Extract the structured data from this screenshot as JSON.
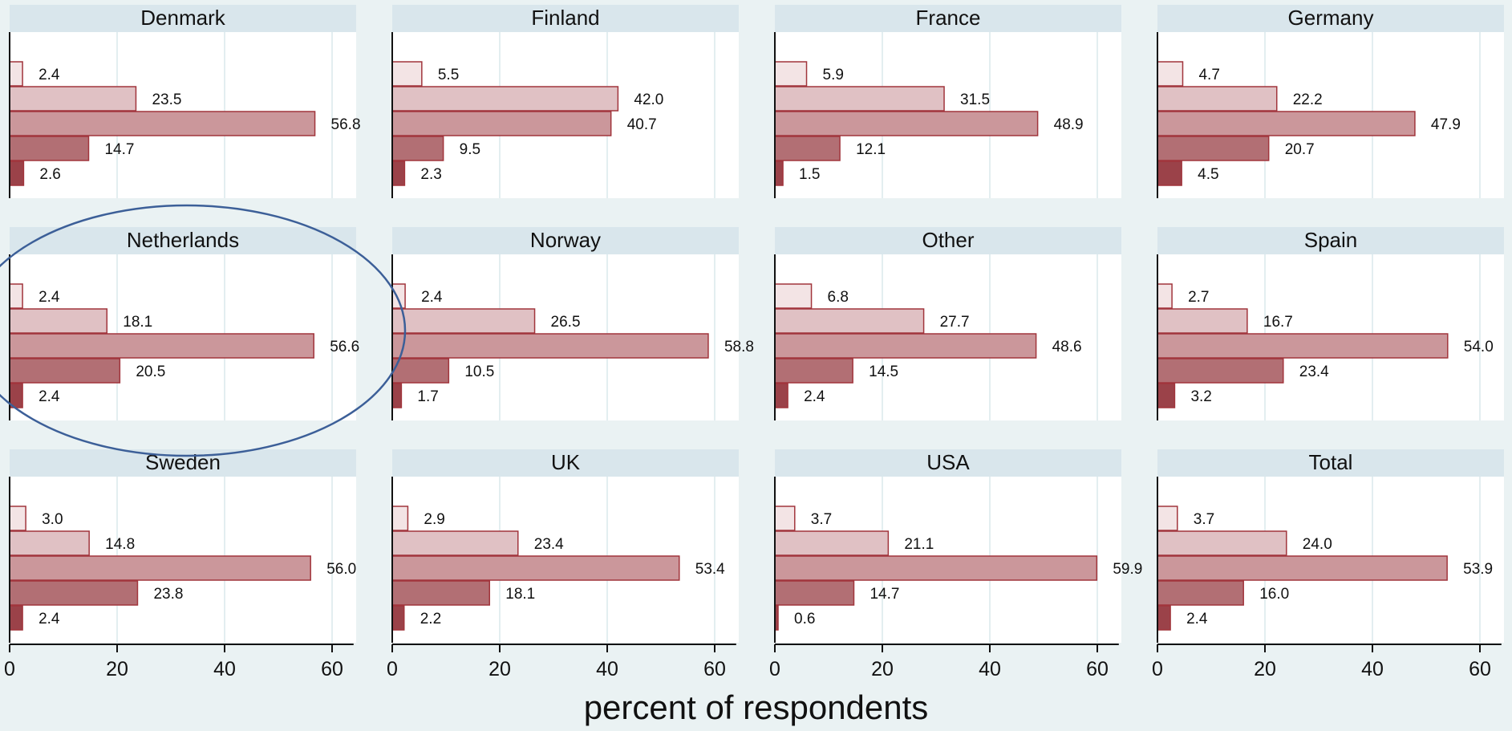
{
  "chart_data": {
    "type": "bar",
    "orientation": "horizontal",
    "xlabel": "percent of respondents",
    "xlim": [
      0,
      64
    ],
    "xticks": [
      0,
      20,
      40,
      60
    ],
    "grid": true,
    "series_colors": [
      "#f3e4e5",
      "#e0c1c4",
      "#cb979b",
      "#b26f74",
      "#9b4249"
    ],
    "edge_color": "#a1353c",
    "annotation": {
      "shape": "ellipse",
      "color": "#3c5f98",
      "target_panel": "Netherlands"
    },
    "panels": [
      {
        "title": "Denmark",
        "values": [
          2.4,
          23.5,
          56.8,
          14.7,
          2.6
        ]
      },
      {
        "title": "Finland",
        "values": [
          5.5,
          42.0,
          40.7,
          9.5,
          2.3
        ]
      },
      {
        "title": "France",
        "values": [
          5.9,
          31.5,
          48.9,
          12.1,
          1.5
        ]
      },
      {
        "title": "Germany",
        "values": [
          4.7,
          22.2,
          47.9,
          20.7,
          4.5
        ]
      },
      {
        "title": "Netherlands",
        "values": [
          2.4,
          18.1,
          56.6,
          20.5,
          2.4
        ]
      },
      {
        "title": "Norway",
        "values": [
          2.4,
          26.5,
          58.8,
          10.5,
          1.7
        ]
      },
      {
        "title": "Other",
        "values": [
          6.8,
          27.7,
          48.6,
          14.5,
          2.4
        ]
      },
      {
        "title": "Spain",
        "values": [
          2.7,
          16.7,
          54.0,
          23.4,
          3.2
        ]
      },
      {
        "title": "Sweden",
        "values": [
          3.0,
          14.8,
          56.0,
          23.8,
          2.4
        ]
      },
      {
        "title": "UK",
        "values": [
          2.9,
          23.4,
          53.4,
          18.1,
          2.2
        ]
      },
      {
        "title": "USA",
        "values": [
          3.7,
          21.1,
          59.9,
          14.7,
          0.6
        ]
      },
      {
        "title": "Total",
        "values": [
          3.7,
          24.0,
          53.9,
          16.0,
          2.4
        ]
      }
    ]
  }
}
